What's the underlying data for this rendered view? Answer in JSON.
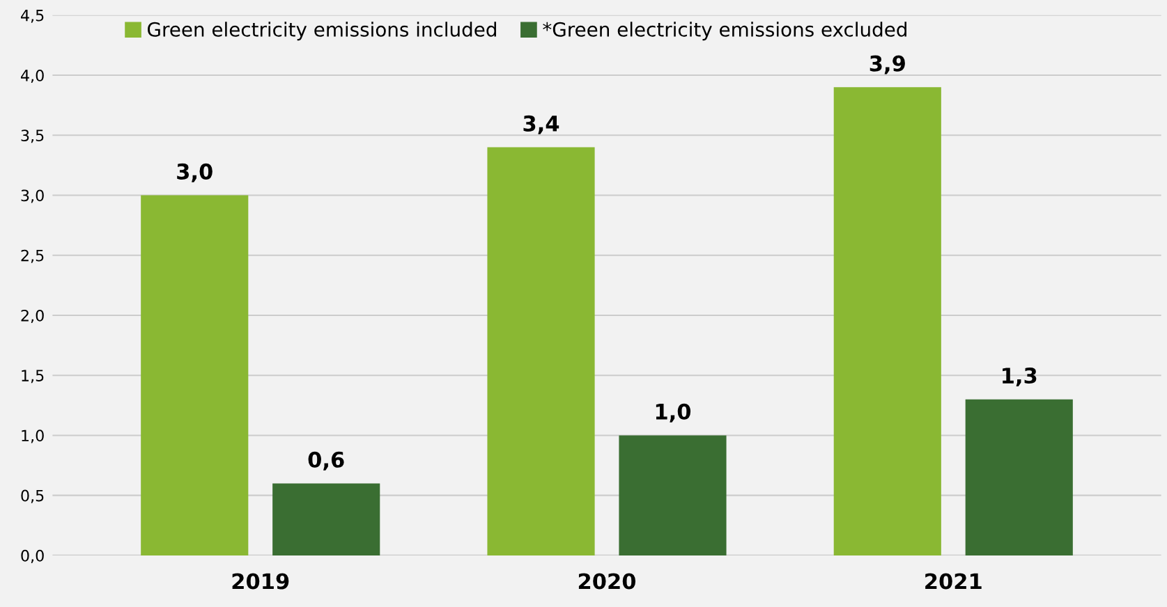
{
  "chart_data": {
    "type": "bar",
    "categories": [
      "2019",
      "2020",
      "2021"
    ],
    "series": [
      {
        "name": "Green electricity emissions included",
        "color": "#8ab833",
        "values": [
          3.0,
          3.4,
          3.9
        ],
        "value_labels": [
          "3,0",
          "3,4",
          "3,9"
        ]
      },
      {
        "name": "*Green electricity emissions excluded",
        "color": "#3a6e32",
        "values": [
          0.6,
          1.0,
          1.3
        ],
        "value_labels": [
          "0,6",
          "1,0",
          "1,3"
        ]
      }
    ],
    "ylim": [
      0,
      4.5
    ],
    "yticks": [
      {
        "value": 0,
        "label": "0,0"
      },
      {
        "value": 0.5,
        "label": "0,5"
      },
      {
        "value": 1,
        "label": "1,0"
      },
      {
        "value": 1.5,
        "label": "1,5"
      },
      {
        "value": 2,
        "label": "2,0"
      },
      {
        "value": 2.5,
        "label": "2,5"
      },
      {
        "value": 3,
        "label": "3,0"
      },
      {
        "value": 3.5,
        "label": "3,5"
      },
      {
        "value": 4,
        "label": "4,0"
      },
      {
        "value": 4.5,
        "label": "4,5"
      }
    ],
    "grid": "y",
    "legend": "top left"
  }
}
